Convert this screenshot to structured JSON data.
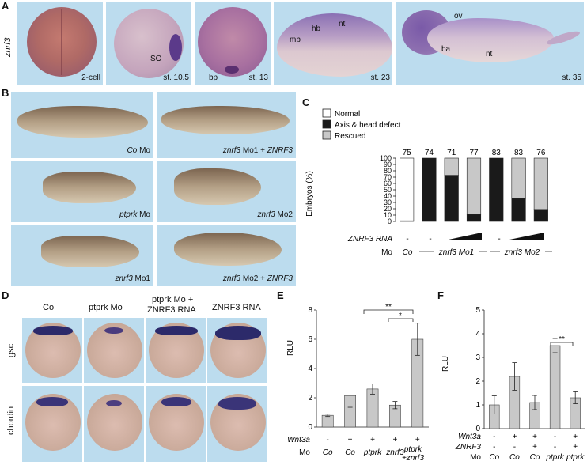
{
  "panelA": {
    "letter": "A",
    "gene": "znrf3",
    "tiles": [
      {
        "stage": "2-cell"
      },
      {
        "stage": "st. 10.5",
        "marker": "SO"
      },
      {
        "stage": "st. 13",
        "marker": "bp"
      },
      {
        "stage": "st. 23",
        "markers": [
          "mb",
          "hb",
          "nt"
        ]
      },
      {
        "stage": "st. 35",
        "markers": [
          "ov",
          "ba",
          "nt"
        ]
      }
    ]
  },
  "panelB": {
    "letter": "B",
    "tiles": [
      {
        "label_it": "Co",
        "label": " Mo"
      },
      {
        "label_it": "znrf3",
        "label": " Mo1 + ",
        "label_it2": "ZNRF3"
      },
      {
        "label_it": "ptprk",
        "label": " Mo"
      },
      {
        "label_it": "znrf3",
        "label": " Mo2"
      },
      {
        "label_it": "znrf3",
        "label": " Mo1"
      },
      {
        "label_it": "znrf3",
        "label": " Mo2 + ",
        "label_it2": "ZNRF3"
      }
    ]
  },
  "panelC": {
    "letter": "C",
    "legend": [
      "Normal",
      "Axis & head defect",
      "Rescued"
    ],
    "ylabel": "Embryos (%)",
    "row_rna": "ZNRF3 RNA",
    "row_mo": "Mo",
    "mo_co": "Co",
    "mo_group1": "znrf3 Mo1",
    "mo_group2": "znrf3 Mo2",
    "dash": "-"
  },
  "panelD": {
    "letter": "D",
    "columns": [
      "Co",
      "ptprk Mo",
      "ptprk Mo +\nZNRF3 RNA",
      "ZNRF3 RNA"
    ],
    "col3_line1": "ptprk Mo +",
    "col3_line2": "ZNRF3 RNA",
    "rows": [
      "gsc",
      "chordin"
    ]
  },
  "panelE": {
    "letter": "E",
    "ylabel": "RLU",
    "row1_label": "Wnt3a",
    "row2_label": "Mo",
    "wnt3a": [
      "-",
      "+",
      "+",
      "+",
      "+"
    ],
    "mo": [
      "Co",
      "Co",
      "ptprk",
      "znrf3",
      "ptprk\n+znrf3"
    ],
    "mo_last_1": "ptprk",
    "mo_last_2": "+znrf3",
    "sig1": "**",
    "sig2": "*"
  },
  "panelF": {
    "letter": "F",
    "ylabel": "RLU",
    "row1_label": "Wnt3a",
    "row2_label": "ZNRF3",
    "row3_label": "Mo",
    "wnt3a": [
      "-",
      "+",
      "+",
      "-",
      "+"
    ],
    "znrf3": [
      "-",
      "-",
      "+",
      "-",
      "+"
    ],
    "mo": [
      "Co",
      "Co",
      "Co",
      "ptprk",
      "ptprk"
    ],
    "sig": "**"
  },
  "chart_data": [
    {
      "type": "bar",
      "panel": "C",
      "stacked": true,
      "categories": [
        "Co",
        "Mo1",
        "Mo1 + low RNA",
        "Mo1 + high RNA",
        "Mo2",
        "Mo2 + low RNA",
        "Mo2 + high RNA"
      ],
      "n_labels": [
        "75",
        "74",
        "71",
        "77",
        "83",
        "83",
        "76"
      ],
      "series": [
        {
          "name": "Normal",
          "values": [
            99,
            0,
            0,
            0,
            0,
            0,
            0
          ],
          "color": "#ffffff"
        },
        {
          "name": "Axis & head defect",
          "values": [
            1,
            100,
            73,
            11,
            100,
            36,
            19
          ],
          "color": "#1a1a1a"
        },
        {
          "name": "Rescued",
          "values": [
            0,
            0,
            27,
            89,
            0,
            64,
            81
          ],
          "color": "#c8c8c8"
        }
      ],
      "ylabel": "Embryos (%)",
      "yticks": [
        0,
        10,
        20,
        30,
        40,
        50,
        60,
        70,
        80,
        90,
        100
      ],
      "ylim": [
        0,
        100
      ]
    },
    {
      "type": "bar",
      "panel": "E",
      "categories": [
        "Co",
        "Co",
        "ptprk",
        "znrf3",
        "ptprk+znrf3"
      ],
      "values": [
        0.8,
        2.15,
        2.6,
        1.5,
        6.0
      ],
      "errors": [
        0.08,
        0.8,
        0.35,
        0.25,
        1.1
      ],
      "ylabel": "RLU",
      "yticks": [
        0,
        2,
        4,
        6,
        8
      ],
      "ylim": [
        0,
        8
      ]
    },
    {
      "type": "bar",
      "panel": "F",
      "categories": [
        "Co",
        "Co",
        "Co",
        "ptprk",
        "ptprk"
      ],
      "values": [
        1.0,
        2.2,
        1.1,
        3.5,
        1.3
      ],
      "errors": [
        0.38,
        0.58,
        0.3,
        0.3,
        0.25
      ],
      "ylabel": "RLU",
      "yticks": [
        0,
        1,
        2,
        3,
        4,
        5
      ],
      "ylim": [
        0,
        5
      ]
    }
  ]
}
